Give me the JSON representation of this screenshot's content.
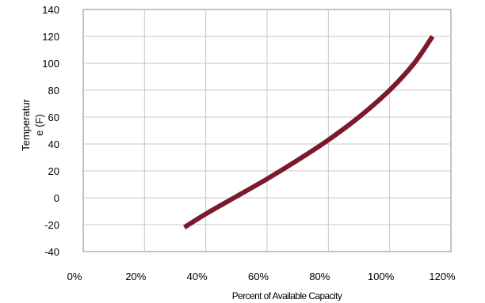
{
  "chart_data": {
    "type": "line",
    "title": "",
    "xlabel": "Percent of Available Capacity",
    "ylabel_line1": "Temperatur",
    "ylabel_line2": "e (F)",
    "xlim": [
      0,
      120
    ],
    "ylim": [
      -40,
      140
    ],
    "x_ticks": [
      "0%",
      "20%",
      "40%",
      "60%",
      "80%",
      "100%",
      "120%"
    ],
    "y_ticks": [
      "140",
      "120",
      "100",
      "80",
      "60",
      "40",
      "20",
      "0",
      "-20",
      "-40"
    ],
    "grid": true,
    "series": [
      {
        "color": "#7b1a2c",
        "x": [
          33,
          40,
          50,
          60,
          70,
          80,
          90,
          100,
          108,
          114
        ],
        "y": [
          -22,
          -12,
          1,
          14,
          28,
          43,
          60,
          80,
          100,
          120
        ]
      }
    ]
  }
}
